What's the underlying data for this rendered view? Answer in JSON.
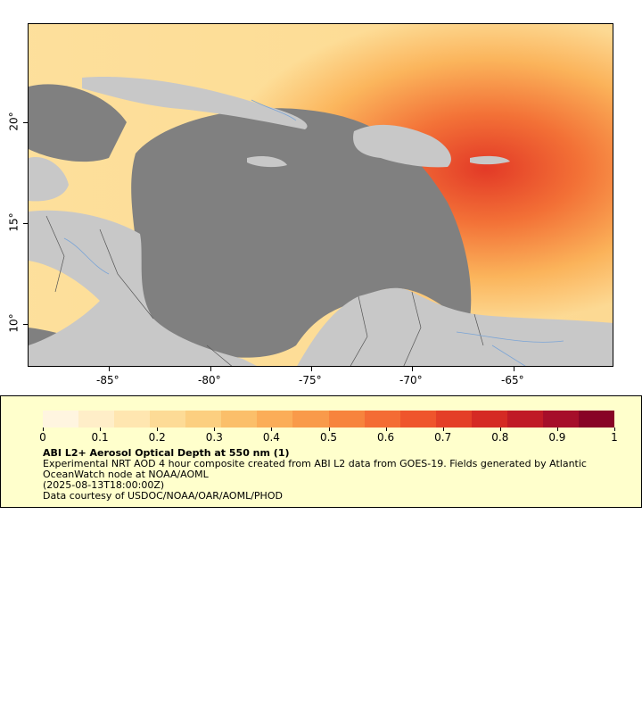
{
  "map": {
    "lon_labels": [
      "-85°",
      "-80°",
      "-75°",
      "-70°",
      "-65°"
    ],
    "lat_labels": [
      "20°",
      "15°",
      "10°"
    ],
    "land_color": "#c8c8c8",
    "water_color": "#808080"
  },
  "legend": {
    "scale_labels": [
      "0",
      "0.1",
      "0.2",
      "0.3",
      "0.4",
      "0.5",
      "0.6",
      "0.7",
      "0.8",
      "0.9",
      "1"
    ],
    "title": "ABI L2+ Aerosol Optical Depth at 550 nm (1)",
    "line1": "Experimental NRT AOD 4 hour composite created from ABI L2 data from GOES-19. Fields generated by Atlantic",
    "line2": "OceanWatch node at NOAA/AOML",
    "line3": "(2025-08-13T18:00:00Z)",
    "line4": "Data courtesy of USDOC/NOAA/OAR/AOML/PHOD",
    "colors": [
      "#fff5e0",
      "#ffeec8",
      "#ffe6b0",
      "#fddb96",
      "#fccf80",
      "#fbbf6a",
      "#fbad58",
      "#f99a4a",
      "#f7843d",
      "#f46c34",
      "#ef552c",
      "#e43f27",
      "#d52a24",
      "#c01a26",
      "#a60e2a",
      "#880426"
    ],
    "background": "#ffffcc"
  }
}
